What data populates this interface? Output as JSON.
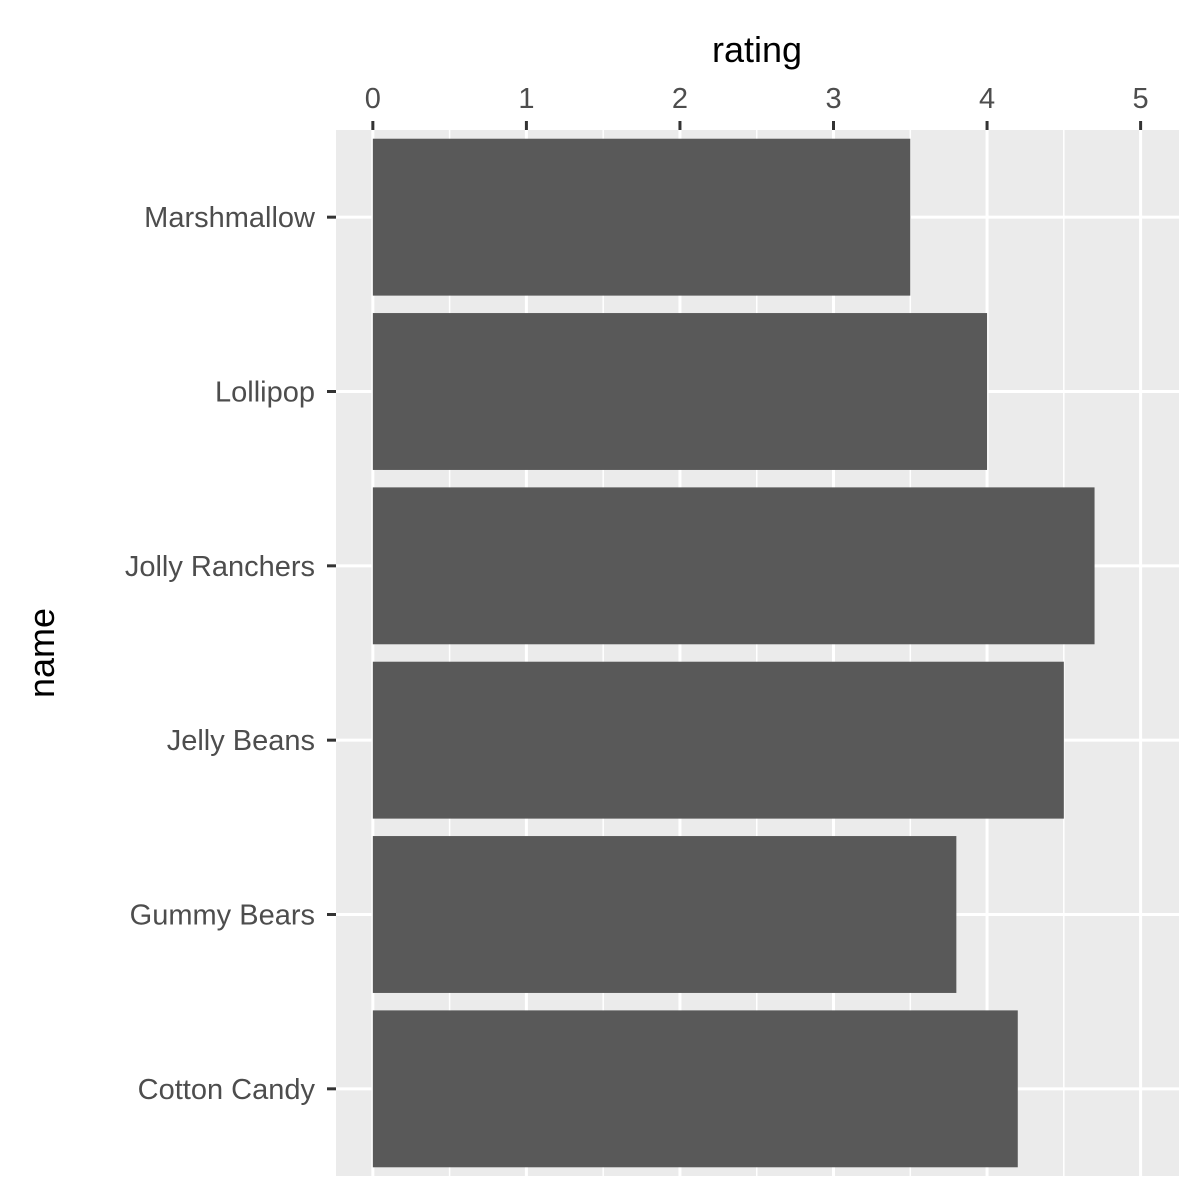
{
  "chart_data": {
    "type": "bar",
    "orientation": "horizontal",
    "categories": [
      "Marshmallow",
      "Lollipop",
      "Jolly Ranchers",
      "Jelly Beans",
      "Gummy Bears",
      "Cotton Candy"
    ],
    "values": [
      3.5,
      4.0,
      4.7,
      4.5,
      3.8,
      4.2
    ],
    "xlabel": "rating",
    "ylabel": "name",
    "x_axis_position": "top",
    "xlim": [
      -0.24,
      5.25
    ],
    "xticks": [
      0,
      1,
      2,
      3,
      4,
      5
    ],
    "grid": true,
    "legend": "none",
    "colors": {
      "bar": "#595959",
      "panel": "#ebebeb",
      "grid": "#ffffff",
      "tick_label": "#4d4d4d",
      "tick_mark": "#333333",
      "axis_title": "#000000"
    }
  }
}
